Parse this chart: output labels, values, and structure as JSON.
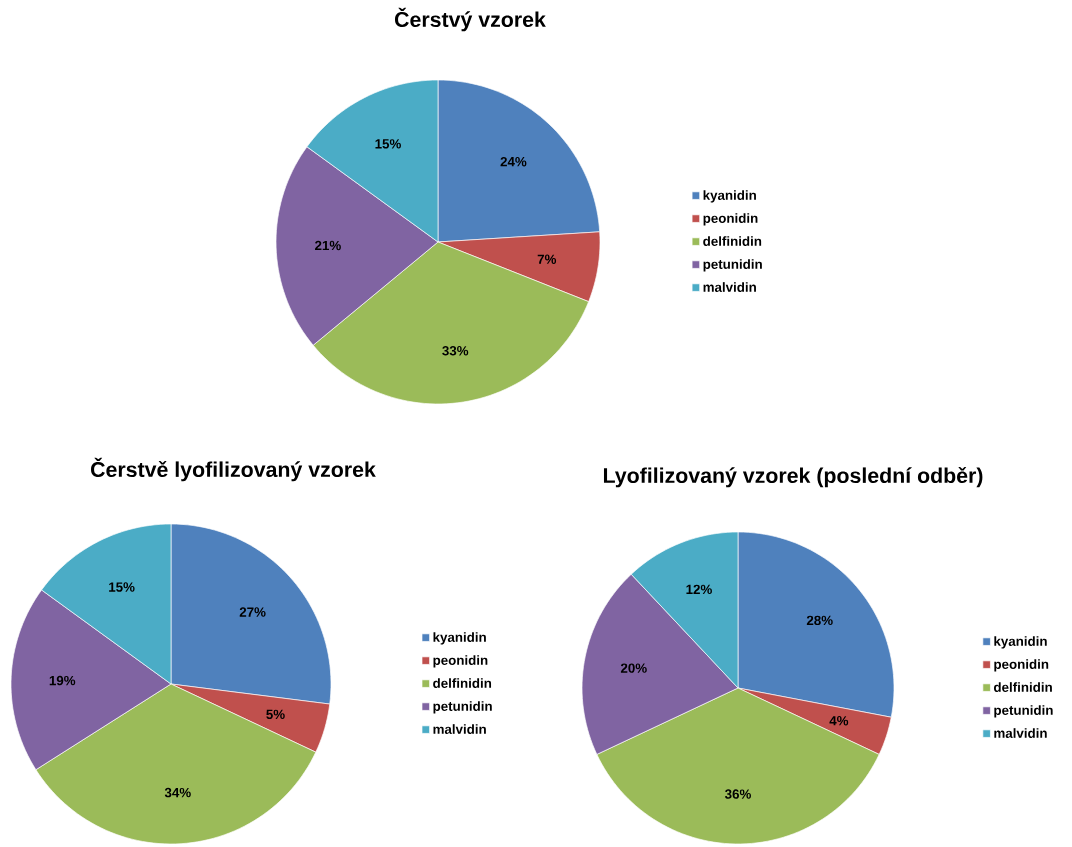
{
  "chart_data": [
    {
      "type": "pie",
      "title": "Čerstvý vzorek",
      "categories": [
        "kyanidin",
        "peonidin",
        "delfinidin",
        "petunidin",
        "malvidin"
      ],
      "values": [
        24,
        7,
        33,
        21,
        15
      ],
      "colors": [
        "#4f81bd",
        "#c0504d",
        "#9bbb59",
        "#8064a2",
        "#4bacc6"
      ],
      "value_labels": [
        "24%",
        "7%",
        "33%",
        "21%",
        "15%"
      ],
      "legend": "right"
    },
    {
      "type": "pie",
      "title": "Čerstvě lyofilizovaný vzorek",
      "categories": [
        "kyanidin",
        "peonidin",
        "delfinidin",
        "petunidin",
        "malvidin"
      ],
      "values": [
        27,
        5,
        34,
        19,
        15
      ],
      "colors": [
        "#4f81bd",
        "#c0504d",
        "#9bbb59",
        "#8064a2",
        "#4bacc6"
      ],
      "value_labels": [
        "27%",
        "5%",
        "34%",
        "19%",
        "15%"
      ],
      "legend": "right"
    },
    {
      "type": "pie",
      "title": "Lyofilizovaný vzorek (poslední odběr)",
      "categories": [
        "kyanidin",
        "peonidin",
        "delfinidin",
        "petunidin",
        "malvidin"
      ],
      "values": [
        28,
        4,
        36,
        20,
        12
      ],
      "colors": [
        "#4f81bd",
        "#c0504d",
        "#9bbb59",
        "#8064a2",
        "#4bacc6"
      ],
      "value_labels": [
        "28%",
        "4%",
        "36%",
        "20%",
        "12%"
      ],
      "legend": "right"
    }
  ]
}
